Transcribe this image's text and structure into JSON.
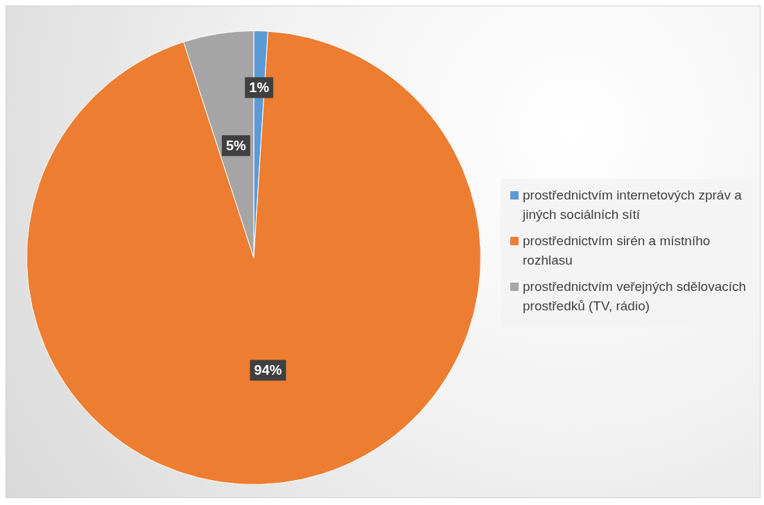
{
  "chart_data": {
    "type": "pie",
    "categories": [
      "prostřednictvím internetových zpráv a jiných sociálních sítí",
      "prostřednictvím sirén a místního rozhlasu",
      "prostřednictvím veřejných sdělovacích prostředků (TV, rádio)"
    ],
    "values": [
      1,
      94,
      5
    ],
    "colors": [
      "#5b9bd5",
      "#ed7d31",
      "#a5a5a5"
    ],
    "value_labels": [
      "1%",
      "94%",
      "5%"
    ],
    "legend": "right"
  }
}
